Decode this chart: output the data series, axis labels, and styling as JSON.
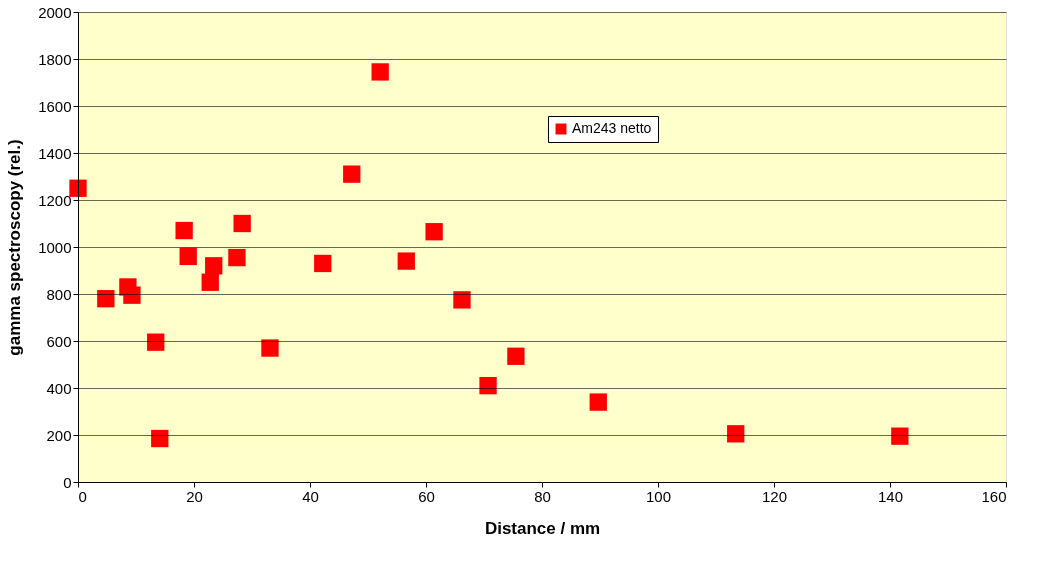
{
  "chart_data": {
    "type": "scatter",
    "xlabel": "Distance / mm",
    "ylabel": "gamma spectroscopy (rel.)",
    "x": [
      0,
      4.8,
      8.6,
      9.3,
      13.4,
      14.1,
      18.3,
      19.0,
      22.8,
      23.4,
      27.4,
      28.3,
      33.1,
      42.2,
      47.2,
      52.1,
      56.6,
      61.4,
      66.2,
      70.7,
      75.5,
      89.7,
      113.4,
      141.7
    ],
    "series": [
      {
        "name": "Am243 netto",
        "color": "#ff0000",
        "values": [
          1250,
          780,
          830,
          795,
          595,
          185,
          1070,
          960,
          850,
          920,
          955,
          1100,
          570,
          930,
          1310,
          1745,
          940,
          1065,
          775,
          410,
          535,
          340,
          205,
          195
        ]
      }
    ],
    "xlim": [
      0,
      160
    ],
    "xticks": [
      0,
      20,
      40,
      60,
      80,
      100,
      120,
      140,
      160
    ],
    "ylim": [
      0,
      2000
    ],
    "yticks": [
      0,
      200,
      400,
      600,
      800,
      1000,
      1200,
      1400,
      1600,
      1800,
      2000
    ],
    "grid": "y",
    "legend": "top right",
    "marker": "square"
  }
}
